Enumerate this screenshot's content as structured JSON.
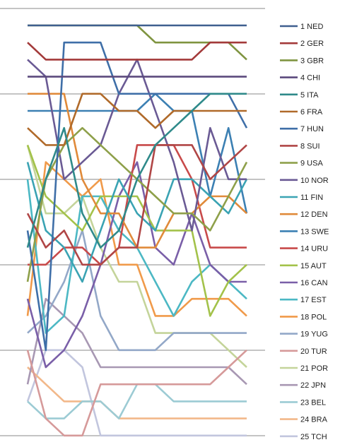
{
  "chart_data": {
    "type": "line",
    "title": "",
    "xlabel": "",
    "ylabel": "",
    "x": [
      1,
      2,
      3,
      4,
      5,
      6,
      7,
      8,
      9,
      10,
      11,
      12,
      13
    ],
    "ylim": [
      1,
      25
    ],
    "y_inverted": true,
    "grid": "horizontal",
    "legend": "right",
    "series": [
      {
        "name": "1 NED",
        "color": "#3f5f8f",
        "values": [
          1,
          1,
          1,
          1,
          1,
          1,
          1,
          1,
          1,
          1,
          1,
          1,
          1
        ]
      },
      {
        "name": "2 GER",
        "color": "#a33a3a",
        "values": [
          2,
          3,
          3,
          3,
          3,
          3,
          3,
          3,
          3,
          3,
          2,
          2,
          2
        ]
      },
      {
        "name": "3 GBR",
        "color": "#7f9440",
        "values": [
          1,
          1,
          1,
          1,
          1,
          1,
          1,
          2,
          2,
          2,
          2,
          2,
          3
        ]
      },
      {
        "name": "4 CHI",
        "color": "#5b4a7d",
        "values": [
          4,
          4,
          4,
          4,
          4,
          4,
          4,
          4,
          4,
          4,
          4,
          4,
          4
        ]
      },
      {
        "name": "5 ITA",
        "color": "#2f8a8a",
        "values": [
          14,
          10,
          7,
          12,
          14,
          13,
          10,
          8,
          7,
          6,
          5,
          5,
          5
        ]
      },
      {
        "name": "6 FRA",
        "color": "#b06a2a",
        "values": [
          7,
          8,
          8,
          5,
          5,
          6,
          6,
          7,
          6,
          6,
          6,
          6,
          6
        ]
      },
      {
        "name": "7 HUN",
        "color": "#3f6fa8",
        "values": [
          13,
          20,
          2,
          2,
          2,
          5,
          5,
          5,
          5,
          5,
          5,
          5,
          7
        ]
      },
      {
        "name": "8 SUI",
        "color": "#b04646",
        "values": [
          12,
          14,
          13,
          15,
          15,
          14,
          14,
          8,
          8,
          8,
          10,
          9,
          8
        ]
      },
      {
        "name": "9 USA",
        "color": "#8ea04a",
        "values": [
          16,
          10,
          8,
          7,
          8,
          9,
          10,
          11,
          12,
          12,
          13,
          11,
          9
        ]
      },
      {
        "name": "10 NOR",
        "color": "#6a5a94",
        "values": [
          3,
          4,
          10,
          9,
          8,
          5,
          3,
          6,
          9,
          13,
          7,
          10,
          10
        ]
      },
      {
        "name": "11 FIN",
        "color": "#3aa3b3",
        "values": [
          9,
          13,
          14,
          16,
          13,
          10,
          12,
          13,
          10,
          10,
          11,
          12,
          10
        ]
      },
      {
        "name": "12 DEN",
        "color": "#e08a3a",
        "values": [
          5,
          5,
          5,
          10,
          12,
          12,
          14,
          14,
          12,
          12,
          11,
          11,
          12
        ]
      },
      {
        "name": "13 SWE",
        "color": "#3c80b3",
        "values": [
          6,
          6,
          6,
          6,
          6,
          6,
          6,
          5,
          6,
          6,
          11,
          7,
          12
        ]
      },
      {
        "name": "14 URU",
        "color": "#c84a4a",
        "values": [
          15,
          15,
          14,
          14,
          15,
          14,
          8,
          8,
          8,
          10,
          14,
          14,
          14
        ]
      },
      {
        "name": "15 AUT",
        "color": "#a3c24a",
        "values": [
          8,
          11,
          12,
          13,
          11,
          11,
          11,
          13,
          13,
          13,
          18,
          16,
          15
        ]
      },
      {
        "name": "16 CAN",
        "color": "#7a5fa8",
        "values": [
          17,
          21,
          20,
          18,
          15,
          11,
          9,
          14,
          15,
          12,
          15,
          16,
          16
        ]
      },
      {
        "name": "17 EST",
        "color": "#4cb8c4",
        "values": [
          10,
          19,
          18,
          11,
          11,
          13,
          14,
          16,
          18,
          16,
          15,
          16,
          17
        ]
      },
      {
        "name": "18 POL",
        "color": "#f09a4a",
        "values": [
          18,
          9,
          10,
          11,
          10,
          15,
          15,
          18,
          18,
          17,
          17,
          17,
          18
        ]
      },
      {
        "name": "19 YUG",
        "color": "#93a8c8",
        "values": [
          19,
          18,
          16,
          13,
          18,
          20,
          20,
          20,
          19,
          19,
          19,
          19,
          19
        ]
      },
      {
        "name": "20 TUR",
        "color": "#d69a9a",
        "values": [
          20,
          24,
          25,
          25,
          22,
          22,
          22,
          22,
          22,
          22,
          22,
          21,
          20
        ]
      },
      {
        "name": "21 POR",
        "color": "#c4d49a",
        "values": [
          8,
          12,
          12,
          11,
          14,
          16,
          16,
          19,
          19,
          19,
          19,
          20,
          21
        ]
      },
      {
        "name": "22 JPN",
        "color": "#a898b3",
        "values": [
          22,
          17,
          18,
          19,
          21,
          21,
          21,
          21,
          21,
          21,
          21,
          21,
          22
        ]
      },
      {
        "name": "23 BEL",
        "color": "#9ccbd4",
        "values": [
          23,
          24,
          24,
          23,
          23,
          24,
          22,
          22,
          23,
          23,
          23,
          23,
          23
        ]
      },
      {
        "name": "24 BRA",
        "color": "#f2b88a",
        "values": [
          21,
          22,
          23,
          23,
          23,
          24,
          24,
          24,
          24,
          24,
          24,
          24,
          24
        ]
      },
      {
        "name": "25 TCH",
        "color": "#c2c6de",
        "values": [
          23,
          20,
          20,
          21,
          25,
          25,
          25,
          25,
          25,
          25,
          25,
          25,
          25
        ]
      }
    ]
  }
}
